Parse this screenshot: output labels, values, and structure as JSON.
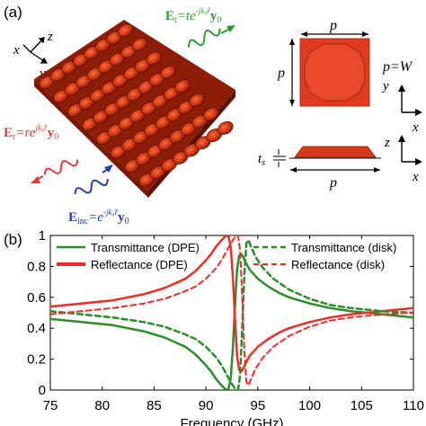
{
  "figure": {
    "panel_a_label": "(a)",
    "panel_b_label": "(b)",
    "coord_x": "x",
    "coord_y": "y",
    "coord_z": "z",
    "field_t_head": "E",
    "field_t_sub": "t",
    "field_t_rhs": "=te",
    "field_t_exp": "-jk₀r̂",
    "field_t_vec": "y",
    "field_t_vec_sub": "0",
    "field_r_head": "E",
    "field_r_sub": "r",
    "field_r_rhs": "=re",
    "field_r_exp": "jk₀r̂",
    "field_r_vec": "y",
    "field_r_vec_sub": "0",
    "field_inc_head": "E",
    "field_inc_sub": "inc",
    "field_inc_rhs": "=e",
    "field_inc_exp": "-jk₀r̂",
    "field_inc_vec": "y",
    "field_inc_vec_sub": "0",
    "dim_p": "p",
    "dim_eq_lhs": "p",
    "dim_eq_rhs": "=W",
    "dim_ts": "t",
    "dim_ts_sub": "s",
    "colors": {
      "dpe_red": "#e8302a",
      "transmit_green": "#2e8b2e",
      "incident_blue": "#1f3fa8",
      "reflect_red": "#e03a3a",
      "patch_red": "#d63a1a"
    }
  },
  "chart_data": {
    "type": "line",
    "xlabel": "Frequency (GHz)",
    "ylabel": "",
    "xlim": [
      75,
      110
    ],
    "ylim": [
      0,
      1
    ],
    "xticks": [
      75,
      80,
      85,
      90,
      95,
      100,
      105,
      110
    ],
    "yticks": [
      0,
      0.2,
      0.4,
      0.6,
      0.8,
      1
    ],
    "ytick_labels": [
      "0",
      "0.2",
      "0.4",
      "0.6",
      "0.8",
      "1"
    ],
    "legend": [
      {
        "label": "Transmittance (DPE)",
        "color": "#2e8b2e",
        "dash": "solid"
      },
      {
        "label": "Reflectance (DPE)",
        "color": "#e8302a",
        "dash": "solid"
      },
      {
        "label": "Transmittance (disk)",
        "color": "#2e8b2e",
        "dash": "dashed"
      },
      {
        "label": "Reflectance (disk)",
        "color": "#e8302a",
        "dash": "dashed"
      }
    ],
    "series": [
      {
        "name": "Transmittance (DPE)",
        "color": "#2e8b2e",
        "dash": "solid",
        "x": [
          75,
          78,
          81,
          84,
          86,
          88,
          89,
          90,
          90.5,
          91,
          91.5,
          91.8,
          92.0,
          92.2,
          92.4,
          92.6,
          92.8,
          93.0,
          93.2,
          93.4,
          93.6,
          93.8,
          94.2,
          95,
          96,
          97,
          98,
          100,
          102,
          104,
          107,
          110
        ],
        "y": [
          0.46,
          0.44,
          0.42,
          0.38,
          0.34,
          0.28,
          0.23,
          0.16,
          0.12,
          0.07,
          0.03,
          0.01,
          0.0,
          0.01,
          0.08,
          0.28,
          0.55,
          0.78,
          0.87,
          0.88,
          0.86,
          0.83,
          0.78,
          0.72,
          0.67,
          0.63,
          0.6,
          0.56,
          0.53,
          0.51,
          0.49,
          0.47
        ]
      },
      {
        "name": "Reflectance (DPE)",
        "color": "#e8302a",
        "dash": "solid",
        "x": [
          75,
          78,
          81,
          84,
          86,
          88,
          89,
          90,
          90.5,
          91,
          91.5,
          91.8,
          92.0,
          92.2,
          92.4,
          92.6,
          92.8,
          93.0,
          93.2,
          93.4,
          93.6,
          93.8,
          94.2,
          95,
          96,
          97,
          98,
          100,
          102,
          104,
          107,
          110
        ],
        "y": [
          0.54,
          0.56,
          0.58,
          0.62,
          0.66,
          0.72,
          0.77,
          0.84,
          0.88,
          0.93,
          0.97,
          0.99,
          1.0,
          0.99,
          0.92,
          0.72,
          0.45,
          0.22,
          0.13,
          0.12,
          0.14,
          0.17,
          0.22,
          0.28,
          0.33,
          0.37,
          0.4,
          0.44,
          0.47,
          0.49,
          0.51,
          0.53
        ]
      },
      {
        "name": "Transmittance (disk)",
        "color": "#2e8b2e",
        "dash": "dashed",
        "x": [
          75,
          78,
          81,
          84,
          86,
          88,
          89,
          90,
          91,
          91.5,
          92,
          92.4,
          92.8,
          93.1,
          93.3,
          93.5,
          93.7,
          93.9,
          94.1,
          94.4,
          94.8,
          95.5,
          96.5,
          98,
          100,
          102,
          104,
          107,
          110
        ],
        "y": [
          0.51,
          0.49,
          0.47,
          0.44,
          0.41,
          0.36,
          0.33,
          0.28,
          0.21,
          0.16,
          0.1,
          0.05,
          0.01,
          0.0,
          0.1,
          0.4,
          0.75,
          0.95,
          0.97,
          0.92,
          0.86,
          0.79,
          0.72,
          0.65,
          0.59,
          0.55,
          0.53,
          0.51,
          0.5
        ]
      },
      {
        "name": "Reflectance (disk)",
        "color": "#e8302a",
        "dash": "dashed",
        "x": [
          75,
          78,
          81,
          84,
          86,
          88,
          89,
          90,
          91,
          91.5,
          92,
          92.4,
          92.8,
          93.1,
          93.3,
          93.5,
          93.7,
          93.9,
          94.1,
          94.4,
          94.8,
          95.5,
          96.5,
          98,
          100,
          102,
          104,
          107,
          110
        ],
        "y": [
          0.49,
          0.51,
          0.53,
          0.56,
          0.59,
          0.64,
          0.67,
          0.72,
          0.79,
          0.84,
          0.9,
          0.95,
          0.99,
          1.0,
          0.9,
          0.6,
          0.25,
          0.05,
          0.03,
          0.08,
          0.14,
          0.21,
          0.28,
          0.35,
          0.41,
          0.45,
          0.47,
          0.49,
          0.5
        ]
      }
    ]
  }
}
